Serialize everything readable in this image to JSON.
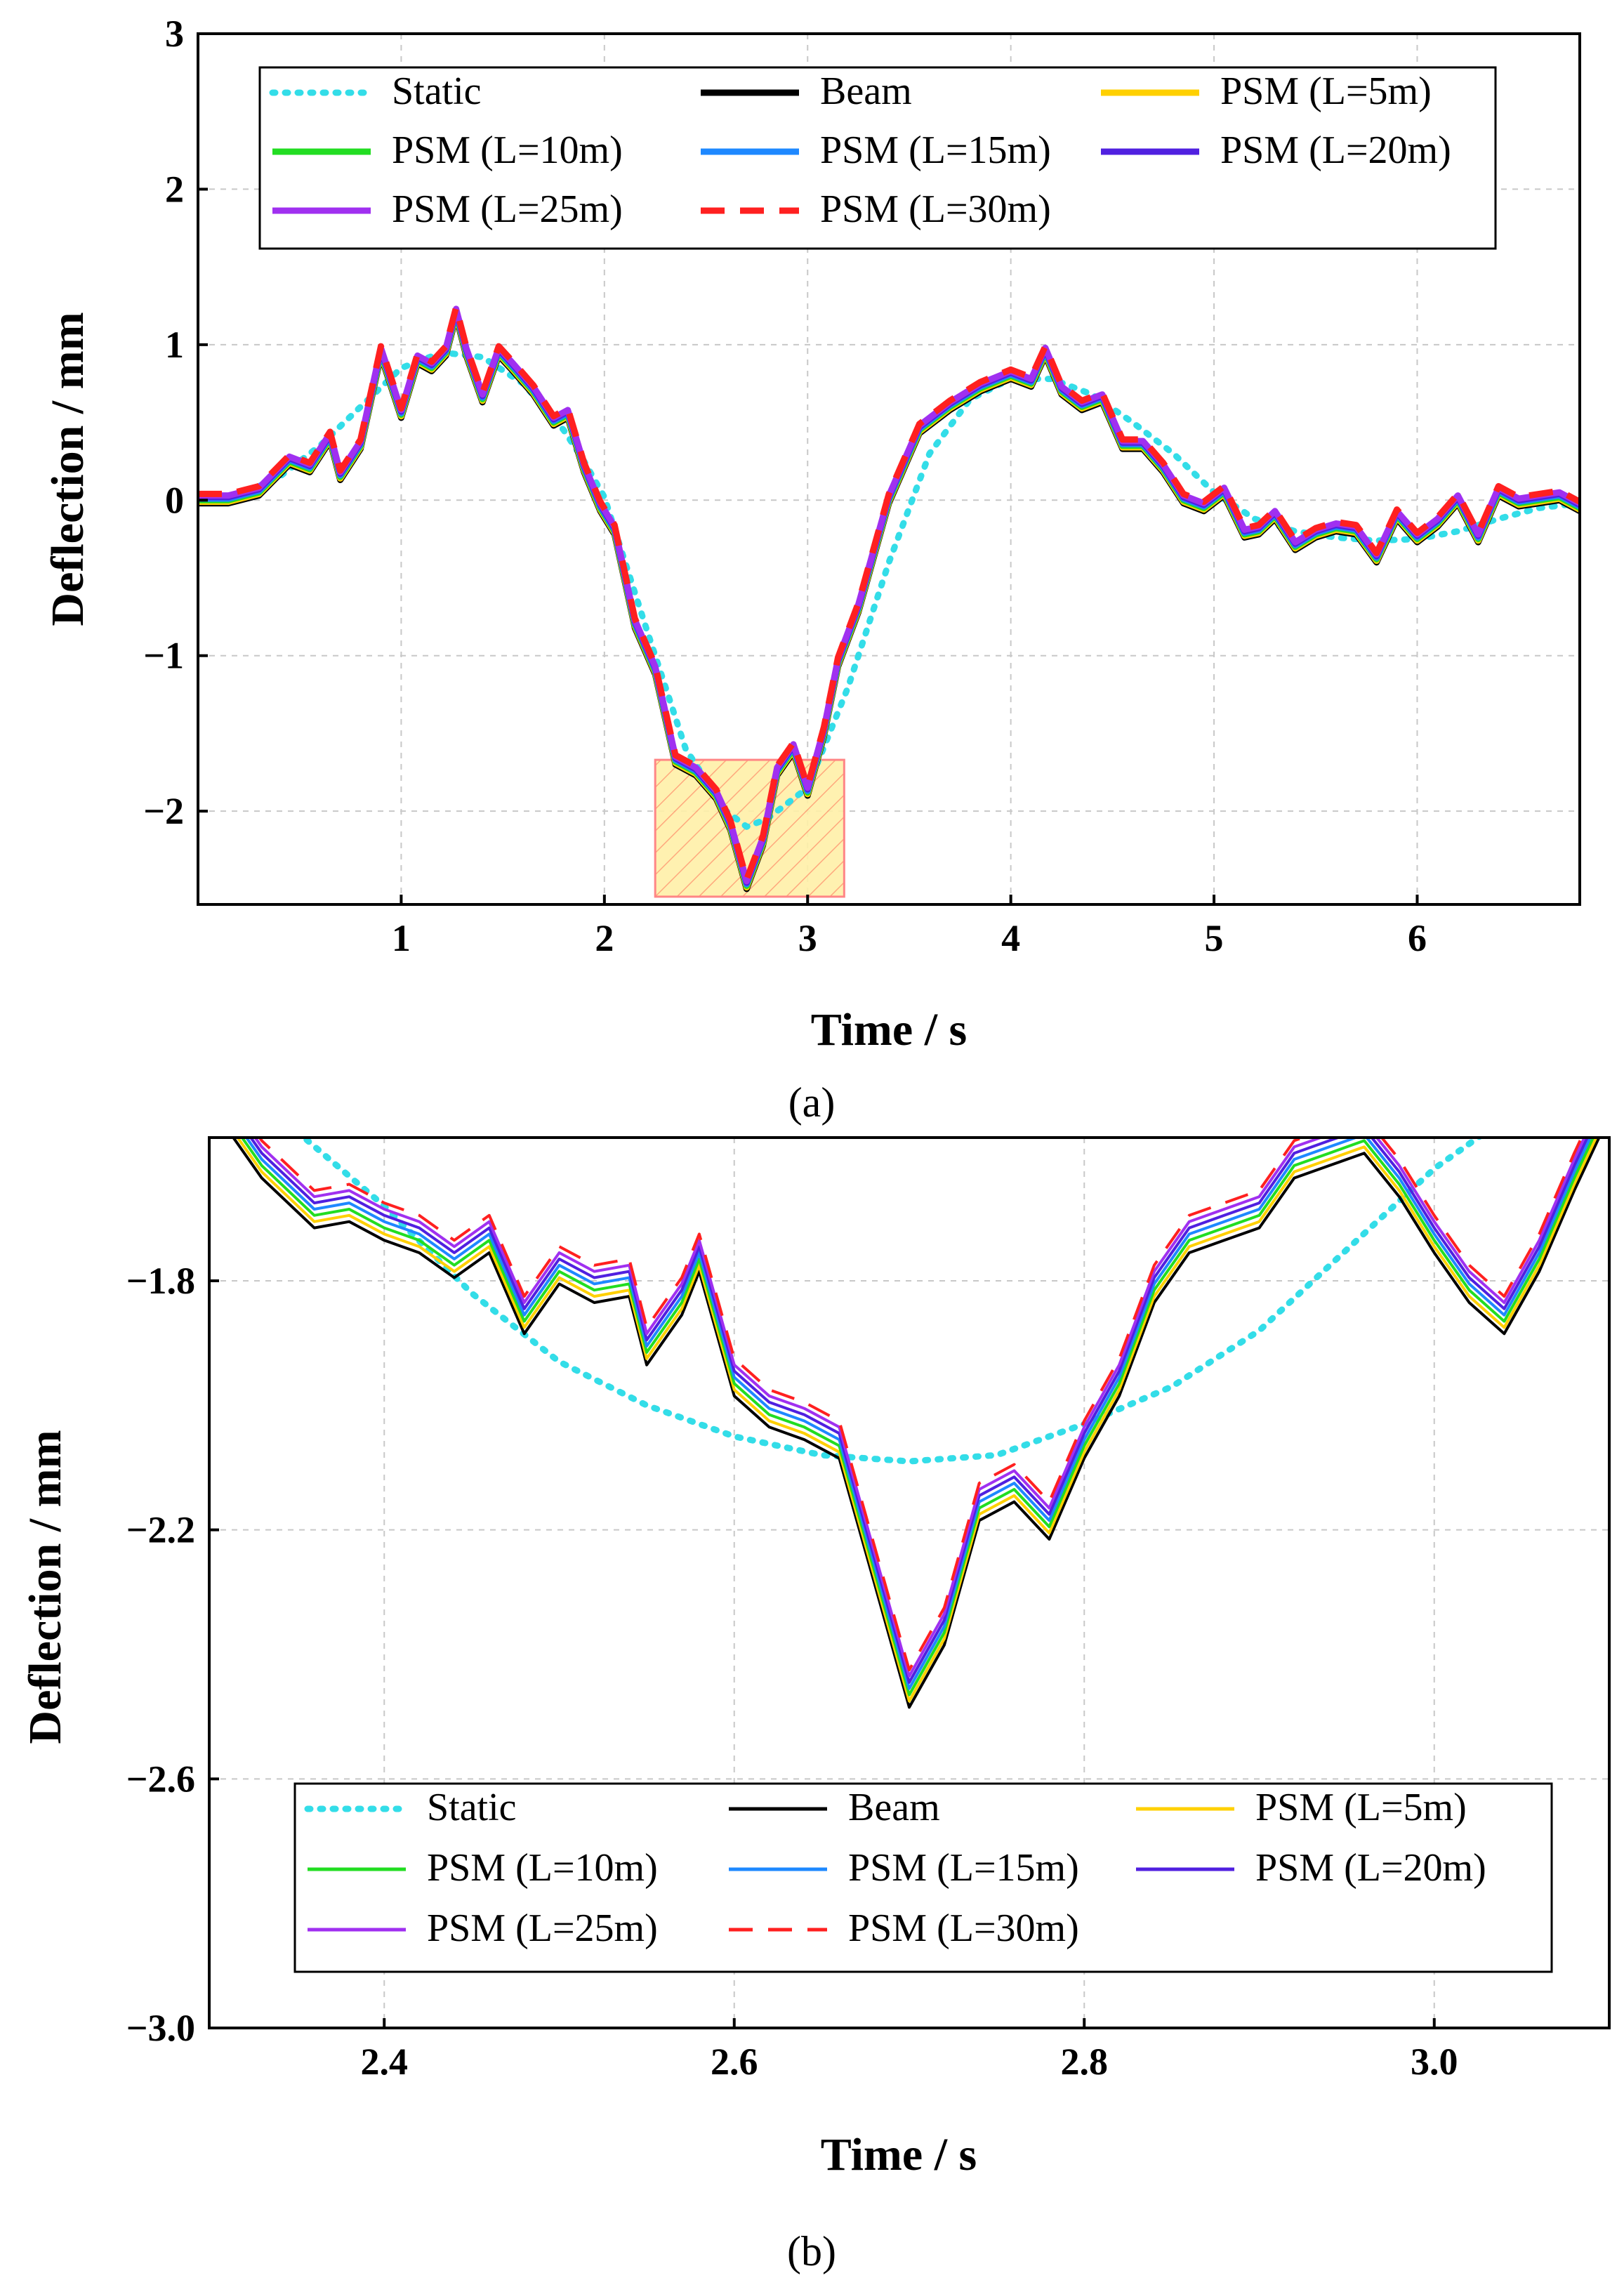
{
  "colors": {
    "static": "#33dde8",
    "beam": "#000000",
    "psm5": "#ffd000",
    "psm10": "#22dd22",
    "psm15": "#1e88ff",
    "psm20": "#5020e0",
    "psm25": "#a030f0",
    "psm30": "#ff2020",
    "highlight_fill": "#ffe680",
    "highlight_stroke": "#ff8080"
  },
  "legend_labels": [
    "Static",
    "Beam",
    "PSM (L=5m)",
    "PSM (L=10m)",
    "PSM (L=15m)",
    "PSM (L=20m)",
    "PSM (L=25m)",
    "PSM (L=30m)"
  ],
  "chart_data": [
    {
      "id": "a",
      "type": "line",
      "caption": "(a)",
      "xlabel": "Time / s",
      "ylabel": "Deflection / mm",
      "xlim": [
        0,
        6.8
      ],
      "ylim": [
        -2.6,
        3
      ],
      "xticks": [
        1,
        2,
        3,
        4,
        5,
        6
      ],
      "yticks": [
        3,
        2,
        1,
        0,
        -1,
        -2
      ],
      "xtick_labels": [
        "1",
        "2",
        "3",
        "4",
        "5",
        "6"
      ],
      "ytick_labels": [
        "3",
        "2",
        "1",
        "0",
        "−1",
        "−2"
      ],
      "highlight_region": {
        "x": [
          2.25,
          3.18
        ],
        "y": [
          -2.55,
          -1.67
        ]
      },
      "series": [
        {
          "name": "Static",
          "key": "static",
          "style": "dotted",
          "x": [
            0,
            0.2,
            0.4,
            0.6,
            0.8,
            1.0,
            1.2,
            1.4,
            1.6,
            1.8,
            1.9,
            2.0,
            2.2,
            2.4,
            2.6,
            2.7,
            2.8,
            3.0,
            3.2,
            3.4,
            3.6,
            3.8,
            4.0,
            4.2,
            4.4,
            4.6,
            4.8,
            5.0,
            5.2,
            5.4,
            5.6,
            5.8,
            6.0,
            6.2,
            6.4,
            6.6,
            6.8
          ],
          "y": [
            0,
            0.03,
            0.15,
            0.35,
            0.6,
            0.85,
            0.95,
            0.92,
            0.75,
            0.45,
            0.25,
            0.02,
            -0.8,
            -1.6,
            -2.0,
            -2.1,
            -2.05,
            -1.85,
            -1.2,
            -0.4,
            0.3,
            0.65,
            0.78,
            0.78,
            0.68,
            0.5,
            0.3,
            0.05,
            -0.12,
            -0.2,
            -0.24,
            -0.26,
            -0.25,
            -0.2,
            -0.12,
            -0.05,
            -0.02
          ]
        },
        {
          "name": "Beam",
          "key": "beam",
          "style": "solid",
          "offset": -0.02
        },
        {
          "name": "PSM (L=5m)",
          "key": "psm5",
          "style": "solid",
          "offset": -0.01
        },
        {
          "name": "PSM (L=10m)",
          "key": "psm10",
          "style": "solid",
          "offset": 0.0
        },
        {
          "name": "PSM (L=15m)",
          "key": "psm15",
          "style": "solid",
          "offset": 0.01
        },
        {
          "name": "PSM (L=20m)",
          "key": "psm20",
          "style": "solid",
          "offset": 0.02
        },
        {
          "name": "PSM (L=25m)",
          "key": "psm25",
          "style": "solid",
          "offset": 0.03
        },
        {
          "name": "PSM (L=30m)",
          "key": "psm30",
          "style": "dashed",
          "offset": 0.04
        }
      ],
      "dynamic_curve": {
        "x": [
          0,
          0.15,
          0.3,
          0.45,
          0.55,
          0.65,
          0.7,
          0.8,
          0.9,
          1.0,
          1.08,
          1.15,
          1.22,
          1.27,
          1.32,
          1.4,
          1.48,
          1.55,
          1.65,
          1.75,
          1.82,
          1.9,
          1.98,
          2.05,
          2.15,
          2.25,
          2.35,
          2.45,
          2.55,
          2.62,
          2.7,
          2.78,
          2.85,
          2.93,
          3.0,
          3.08,
          3.15,
          3.25,
          3.4,
          3.55,
          3.7,
          3.85,
          4.0,
          4.1,
          4.17,
          4.25,
          4.35,
          4.45,
          4.55,
          4.65,
          4.75,
          4.85,
          4.95,
          5.05,
          5.15,
          5.22,
          5.3,
          5.4,
          5.5,
          5.6,
          5.7,
          5.8,
          5.9,
          6.0,
          6.1,
          6.2,
          6.3,
          6.4,
          6.5,
          6.6,
          6.7,
          6.8
        ],
        "y": [
          0,
          0.0,
          0.05,
          0.25,
          0.2,
          0.4,
          0.15,
          0.35,
          0.95,
          0.55,
          0.9,
          0.85,
          0.95,
          1.2,
          0.95,
          0.65,
          0.95,
          0.85,
          0.7,
          0.5,
          0.55,
          0.2,
          -0.05,
          -0.2,
          -0.8,
          -1.1,
          -1.68,
          -1.75,
          -1.9,
          -2.1,
          -2.48,
          -2.2,
          -1.75,
          -1.6,
          -1.88,
          -1.5,
          -1.05,
          -0.7,
          0.0,
          0.45,
          0.6,
          0.72,
          0.8,
          0.75,
          0.95,
          0.7,
          0.6,
          0.65,
          0.35,
          0.35,
          0.2,
          0.0,
          -0.05,
          0.05,
          -0.22,
          -0.2,
          -0.1,
          -0.3,
          -0.22,
          -0.18,
          -0.2,
          -0.38,
          -0.1,
          -0.25,
          -0.15,
          0.0,
          -0.25,
          0.05,
          -0.02,
          0.0,
          0.02,
          -0.05
        ]
      }
    },
    {
      "id": "b",
      "type": "line",
      "caption": "(b)",
      "xlabel": "Time / s",
      "ylabel": "Deflection / mm",
      "xlim": [
        2.3,
        3.1
      ],
      "ylim": [
        -3.0,
        -1.57
      ],
      "xticks": [
        2.4,
        2.6,
        2.8,
        3.0
      ],
      "yticks": [
        -1.8,
        -2.2,
        -2.6,
        -3.0
      ],
      "xtick_labels": [
        "2.4",
        "2.6",
        "2.8",
        "3.0"
      ],
      "ytick_labels": [
        "−1.8",
        "−2.2",
        "−2.6",
        "−3.0"
      ],
      "series": [
        {
          "name": "Static",
          "key": "static",
          "style": "dotted",
          "x": [
            2.3,
            2.35,
            2.4,
            2.45,
            2.5,
            2.55,
            2.6,
            2.65,
            2.7,
            2.75,
            2.8,
            2.85,
            2.9,
            2.95,
            3.0,
            3.05,
            3.1
          ],
          "y": [
            -1.48,
            -1.56,
            -1.68,
            -1.82,
            -1.93,
            -2.0,
            -2.05,
            -2.08,
            -2.09,
            -2.08,
            -2.03,
            -1.97,
            -1.88,
            -1.75,
            -1.62,
            -1.52,
            -1.45
          ]
        },
        {
          "name": "Beam",
          "key": "beam",
          "style": "solid",
          "offset": -0.035
        },
        {
          "name": "PSM (L=5m)",
          "key": "psm5",
          "style": "solid",
          "offset": -0.025
        },
        {
          "name": "PSM (L=10m)",
          "key": "psm10",
          "style": "solid",
          "offset": -0.015
        },
        {
          "name": "PSM (L=15m)",
          "key": "psm15",
          "style": "solid",
          "offset": -0.005
        },
        {
          "name": "PSM (L=20m)",
          "key": "psm20",
          "style": "solid",
          "offset": 0.005
        },
        {
          "name": "PSM (L=25m)",
          "key": "psm25",
          "style": "solid",
          "offset": 0.015
        },
        {
          "name": "PSM (L=30m)",
          "key": "psm30",
          "style": "dashed",
          "offset": 0.025
        }
      ],
      "dynamic_curve": {
        "x": [
          2.3,
          2.33,
          2.36,
          2.38,
          2.4,
          2.42,
          2.44,
          2.46,
          2.48,
          2.5,
          2.52,
          2.54,
          2.55,
          2.57,
          2.58,
          2.6,
          2.62,
          2.64,
          2.66,
          2.68,
          2.7,
          2.72,
          2.74,
          2.76,
          2.78,
          2.8,
          2.82,
          2.84,
          2.86,
          2.88,
          2.9,
          2.92,
          2.94,
          2.96,
          2.98,
          3.0,
          3.02,
          3.04,
          3.06,
          3.08,
          3.1
        ],
        "y": [
          -1.48,
          -1.6,
          -1.68,
          -1.67,
          -1.7,
          -1.72,
          -1.76,
          -1.72,
          -1.85,
          -1.77,
          -1.8,
          -1.79,
          -1.9,
          -1.82,
          -1.75,
          -1.95,
          -2.0,
          -2.02,
          -2.05,
          -2.25,
          -2.45,
          -2.35,
          -2.15,
          -2.12,
          -2.18,
          -2.05,
          -1.95,
          -1.8,
          -1.72,
          -1.7,
          -1.68,
          -1.6,
          -1.58,
          -1.56,
          -1.63,
          -1.72,
          -1.8,
          -1.85,
          -1.75,
          -1.62,
          -1.5
        ]
      }
    }
  ]
}
